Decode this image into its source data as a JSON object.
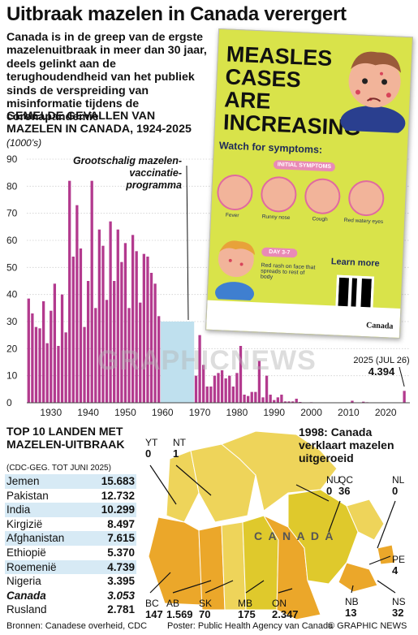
{
  "header": {
    "title": "Uitbraak mazelen in Canada verergert",
    "intro": "Canada is in de greep van de ergste mazelenuitbraak in meer dan 30 jaar, deels gelinkt aan de terughoudendheid van het publiek sinds de verspreiding van misinformatie tijdens de coronapandemie"
  },
  "chart_heading": "GEMELDE GEVALLEN VAN MAZELEN IN CANADA, 1924-2025",
  "chart_unit": "(1000’s)",
  "chart_data": {
    "type": "bar",
    "title": "GEMELDE GEVALLEN VAN MAZELEN IN CANADA, 1924-2025",
    "ylabel": "(1000’s)",
    "ylim": [
      0,
      90
    ],
    "yticks": [
      0,
      10,
      20,
      30,
      40,
      50,
      60,
      70,
      80,
      90
    ],
    "xticks": [
      1930,
      1940,
      1950,
      1960,
      1970,
      1980,
      1990,
      2000,
      2010,
      2020
    ],
    "x": [
      1924,
      1925,
      1926,
      1927,
      1928,
      1929,
      1930,
      1931,
      1932,
      1933,
      1934,
      1935,
      1936,
      1937,
      1938,
      1939,
      1940,
      1941,
      1942,
      1943,
      1944,
      1945,
      1946,
      1947,
      1948,
      1949,
      1950,
      1951,
      1952,
      1953,
      1954,
      1955,
      1956,
      1957,
      1958,
      1959,
      1969,
      1970,
      1971,
      1972,
      1973,
      1974,
      1975,
      1976,
      1977,
      1978,
      1979,
      1980,
      1981,
      1982,
      1983,
      1984,
      1985,
      1986,
      1987,
      1988,
      1989,
      1990,
      1991,
      1992,
      1993,
      1994,
      1995,
      1996,
      1997,
      1998,
      1999,
      2000,
      2005,
      2008,
      2011,
      2014,
      2015,
      2019,
      2024,
      2025
    ],
    "values": [
      38.5,
      33,
      28,
      27.5,
      37.5,
      22,
      34,
      44,
      21,
      40,
      26,
      82,
      54,
      73,
      57,
      28,
      45,
      82,
      35,
      64,
      58,
      38,
      67,
      45,
      64,
      52,
      59,
      35,
      62,
      56,
      37,
      55,
      54,
      48,
      44,
      32,
      10,
      25,
      14,
      6,
      6,
      10,
      11,
      12,
      9,
      10,
      6,
      11,
      21,
      3,
      2.5,
      4,
      4,
      15.5,
      2,
      10,
      3,
      1,
      2,
      3,
      0.5,
      0.5,
      0.5,
      1.5,
      0.3,
      0.1,
      0.1,
      0.2,
      0.1,
      0.1,
      0.75,
      0.4,
      0.2,
      0.1,
      0.15,
      4.394
    ],
    "vaccination_period": [
      1960,
      1969
    ],
    "annotations": {
      "vaccination": "Grootschalig mazelen-vaccinatie-programma",
      "latest_label": "2025 (JUL 26)",
      "latest_value": "4.394",
      "eliminated": "1998: Canada verklaart mazelen uitgeroeid"
    }
  },
  "poster": {
    "heading": "MEASLES CASES ARE INCREASING",
    "watch": "Watch for symptoms:",
    "initial_symptoms": "INITIAL SYMPTOMS",
    "symptoms": [
      "Fever",
      "Runny nose",
      "Cough",
      "Red watery eyes"
    ],
    "day": "DAY 3-7",
    "rash": "Red rash on face that spreads to rest of body",
    "learn_more": "Learn more",
    "canada": "Canada"
  },
  "top10": {
    "title": "TOP 10 LANDEN MET MAZELEN-UITBRAAK",
    "source": "(CDC-GEG. TOT JUNI 2025)",
    "rows": [
      {
        "country": "Jemen",
        "cases": "15.683"
      },
      {
        "country": "Pakistan",
        "cases": "12.732"
      },
      {
        "country": "India",
        "cases": "10.299"
      },
      {
        "country": "Kirgizië",
        "cases": "8.497"
      },
      {
        "country": "Afghanistan",
        "cases": "7.615"
      },
      {
        "country": "Ethiopië",
        "cases": "5.370"
      },
      {
        "country": "Roemenië",
        "cases": "4.739"
      },
      {
        "country": "Nigeria",
        "cases": "3.395"
      },
      {
        "country": "Canada",
        "cases": "3.053"
      },
      {
        "country": "Rusland",
        "cases": "2.781"
      }
    ]
  },
  "map": {
    "country_label": "C A N A D A",
    "provinces": [
      {
        "code": "YT",
        "cases": "0"
      },
      {
        "code": "NT",
        "cases": "1"
      },
      {
        "code": "NU",
        "cases": "0"
      },
      {
        "code": "QC",
        "cases": "36"
      },
      {
        "code": "NL",
        "cases": "0"
      },
      {
        "code": "PE",
        "cases": "4"
      },
      {
        "code": "NB",
        "cases": "13"
      },
      {
        "code": "NS",
        "cases": "32"
      },
      {
        "code": "BC",
        "cases": "147"
      },
      {
        "code": "AB",
        "cases": "1.569"
      },
      {
        "code": "SK",
        "cases": "70"
      },
      {
        "code": "MB",
        "cases": "175"
      },
      {
        "code": "ON",
        "cases": "2.347"
      }
    ]
  },
  "footer": {
    "sources": "Bronnen: Canadese overheid, CDC",
    "poster_credit": "Poster: Public Health Agency van Canada",
    "credit": "© GRAPHIC NEWS"
  },
  "watermark": "GRAPHICNEWS",
  "colors": {
    "bar": "#b33a8e",
    "vaccination_band": "#bfe0ee",
    "table_shade": "#d7eaf5",
    "poster_bg": "#d9e34a",
    "map_orange": "#eba72a",
    "map_yellow": "#dfc92c",
    "map_pale": "#eed45a"
  }
}
